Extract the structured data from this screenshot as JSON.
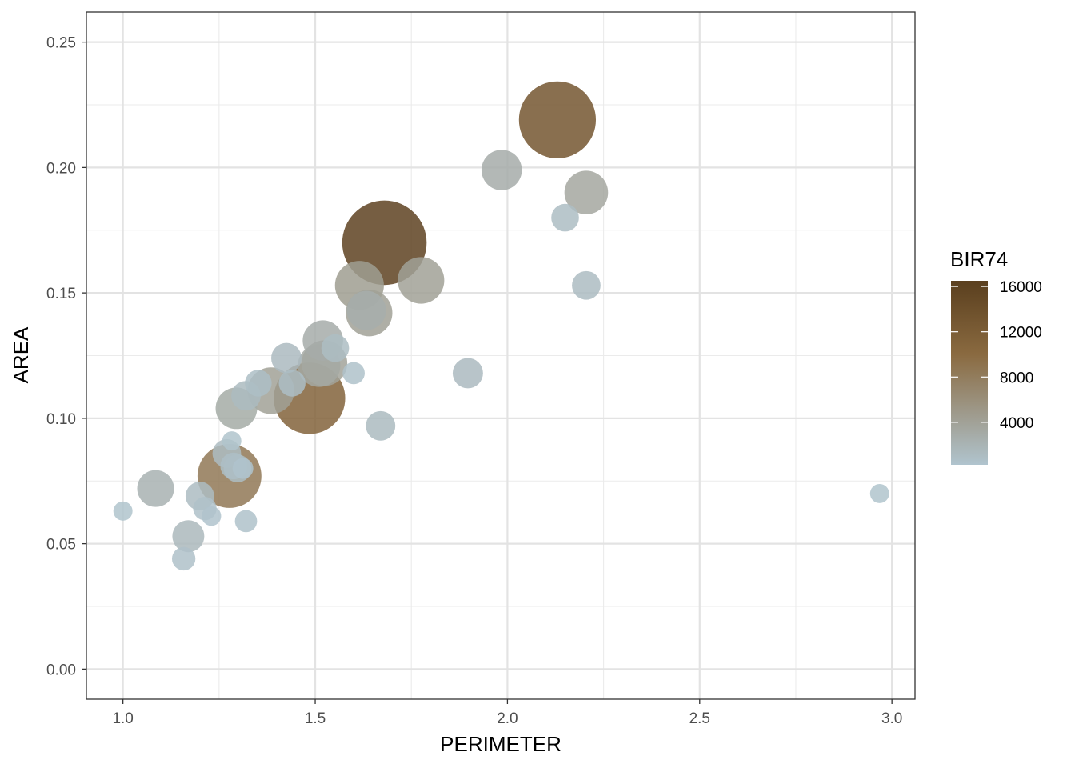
{
  "chart_data": {
    "type": "scatter",
    "title": "",
    "xlabel": "PERIMETER",
    "ylabel": "AREA",
    "xlim": [
      0.905,
      3.06
    ],
    "ylim": [
      -0.012,
      0.262
    ],
    "x_ticks": [
      1.0,
      1.5,
      2.0,
      2.5,
      3.0
    ],
    "x_tick_labels": [
      "1.0",
      "1.5",
      "2.0",
      "2.5",
      "3.0"
    ],
    "y_ticks": [
      0.0,
      0.05,
      0.1,
      0.15,
      0.2,
      0.25
    ],
    "y_tick_labels": [
      "0.00",
      "0.05",
      "0.10",
      "0.15",
      "0.20",
      "0.25"
    ],
    "grid": true,
    "legend": {
      "title": "BIR74",
      "placement": "right",
      "type": "colorbar",
      "range": [
        248,
        16500
      ],
      "breaks": [
        4000,
        8000,
        12000,
        16000
      ],
      "break_labels": [
        "4000",
        "8000",
        "12000",
        "16000"
      ],
      "low_color": "#b0c4ce",
      "mid_color": "#8a6a40",
      "high_color": "#5a3f1e"
    },
    "size_encoding": "BIR74",
    "points": [
      {
        "x": 1.0,
        "y": 0.063,
        "bir74": 300
      },
      {
        "x": 1.085,
        "y": 0.072,
        "bir74": 2200
      },
      {
        "x": 1.158,
        "y": 0.044,
        "bir74": 600
      },
      {
        "x": 1.17,
        "y": 0.053,
        "bir74": 1500
      },
      {
        "x": 1.2,
        "y": 0.069,
        "bir74": 1100
      },
      {
        "x": 1.213,
        "y": 0.064,
        "bir74": 600
      },
      {
        "x": 1.23,
        "y": 0.061,
        "bir74": 320
      },
      {
        "x": 1.27,
        "y": 0.086,
        "bir74": 1100
      },
      {
        "x": 1.277,
        "y": 0.077,
        "bir74": 8500
      },
      {
        "x": 1.283,
        "y": 0.091,
        "bir74": 300
      },
      {
        "x": 1.288,
        "y": 0.081,
        "bir74": 900
      },
      {
        "x": 1.298,
        "y": 0.08,
        "bir74": 1000
      },
      {
        "x": 1.312,
        "y": 0.08,
        "bir74": 400
      },
      {
        "x": 1.295,
        "y": 0.104,
        "bir74": 3000
      },
      {
        "x": 1.32,
        "y": 0.109,
        "bir74": 1200
      },
      {
        "x": 1.32,
        "y": 0.059,
        "bir74": 500
      },
      {
        "x": 1.352,
        "y": 0.114,
        "bir74": 900
      },
      {
        "x": 1.385,
        "y": 0.111,
        "bir74": 4000
      },
      {
        "x": 1.425,
        "y": 0.124,
        "bir74": 1300
      },
      {
        "x": 1.44,
        "y": 0.114,
        "bir74": 900
      },
      {
        "x": 1.485,
        "y": 0.108,
        "bir74": 11000
      },
      {
        "x": 1.51,
        "y": 0.121,
        "bir74": 3200
      },
      {
        "x": 1.52,
        "y": 0.131,
        "bir74": 2800
      },
      {
        "x": 1.524,
        "y": 0.122,
        "bir74": 3800
      },
      {
        "x": 1.552,
        "y": 0.128,
        "bir74": 1000
      },
      {
        "x": 1.6,
        "y": 0.118,
        "bir74": 500
      },
      {
        "x": 1.615,
        "y": 0.153,
        "bir74": 4500
      },
      {
        "x": 1.633,
        "y": 0.143,
        "bir74": 2600
      },
      {
        "x": 1.64,
        "y": 0.142,
        "bir74": 4000
      },
      {
        "x": 1.67,
        "y": 0.097,
        "bir74": 1200
      },
      {
        "x": 1.68,
        "y": 0.17,
        "bir74": 16000
      },
      {
        "x": 1.775,
        "y": 0.155,
        "bir74": 4000
      },
      {
        "x": 1.897,
        "y": 0.118,
        "bir74": 1300
      },
      {
        "x": 1.985,
        "y": 0.199,
        "bir74": 2800
      },
      {
        "x": 2.13,
        "y": 0.219,
        "bir74": 13000
      },
      {
        "x": 2.15,
        "y": 0.18,
        "bir74": 1000
      },
      {
        "x": 2.205,
        "y": 0.19,
        "bir74": 3400
      },
      {
        "x": 2.205,
        "y": 0.153,
        "bir74": 1100
      },
      {
        "x": 2.968,
        "y": 0.07,
        "bir74": 300
      }
    ]
  }
}
